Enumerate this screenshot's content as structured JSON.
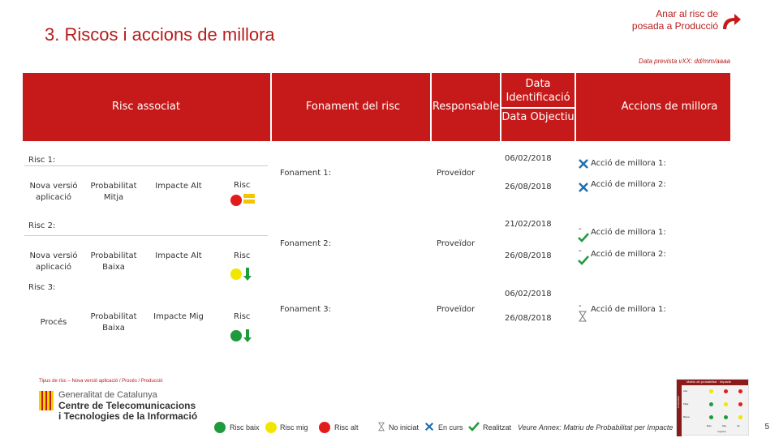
{
  "title": "3. Riscos i accions de millora",
  "goto_link": {
    "line1": "Anar al risc de",
    "line2": "posada a Producció"
  },
  "date_note": "Data prevista vXX: dd/mm/aaaa",
  "header": {
    "col_risk": "Risc associat",
    "col_basis": "Fonament del risc",
    "col_owner": "Responsable",
    "col_ident_date": "Data Identificació",
    "col_target_date": "Data Objectiu",
    "col_actions": "Accions de millora"
  },
  "rows": [
    {
      "label": "Risc 1:",
      "type": "Nova versió aplicació",
      "probability": "Probabilitat Mitja",
      "impact": "Impacte Alt",
      "risk_label": "Risc",
      "basis": "Fonament 1:",
      "owner": "Proveïdor",
      "ident_date": "06/02/2018",
      "target_date": "26/08/2018",
      "action1": "Acció de millora 1:",
      "action2": "Acció de millora 2:"
    },
    {
      "label": "Risc 2:",
      "type": "Nova versió aplicació",
      "probability": "Probabilitat Baixa",
      "impact": "Impacte Alt",
      "risk_label": "Risc",
      "basis": "Fonament 2:",
      "owner": "Proveïdor",
      "ident_date": "21/02/2018",
      "target_date": "26/08/2018",
      "action1": "Acció de millora 1:",
      "action2": "Acció de millora 2:"
    },
    {
      "label": "Risc 3:",
      "type": "Procés",
      "probability": "Probabilitat Baixa",
      "impact": "Impacte Mig",
      "risk_label": "Risc",
      "basis": "Fonament 3:",
      "owner": "Proveïdor",
      "ident_date": "06/02/2018",
      "target_date": "26/08/2018",
      "action1": "Acció de millora 1:"
    }
  ],
  "action_dash": "-",
  "risk_types_note": "Tipus de risc – Nova versió aplicació / Procés / Producció",
  "logo": {
    "line1": "Generalitat de Catalunya",
    "line2": "Centre de Telecomunicacions",
    "line3": "i Tecnologies de la Informació"
  },
  "legend": {
    "low": "Risc baix",
    "mid": "Risc mig",
    "high": "Risc alt",
    "not_started": "No iniciat",
    "in_progress": "En curs",
    "done": "Realitzat",
    "annex": "Veure Annex: Matriu de Probabilitat per Impacte"
  },
  "matrix": {
    "title": "Matriu de probabilitat · Impacte",
    "rows": [
      "Alta",
      "Mitja",
      "Baixa"
    ],
    "cols": [
      "Baix",
      "Mig",
      "Alt"
    ],
    "side": "Probabilitat",
    "bottom": "Impacte"
  },
  "page_number": "5",
  "colors": {
    "brand_red": "#c61a1a",
    "green": "#1f9a3c",
    "yellow": "#f2e600",
    "red": "#e31b1b"
  }
}
